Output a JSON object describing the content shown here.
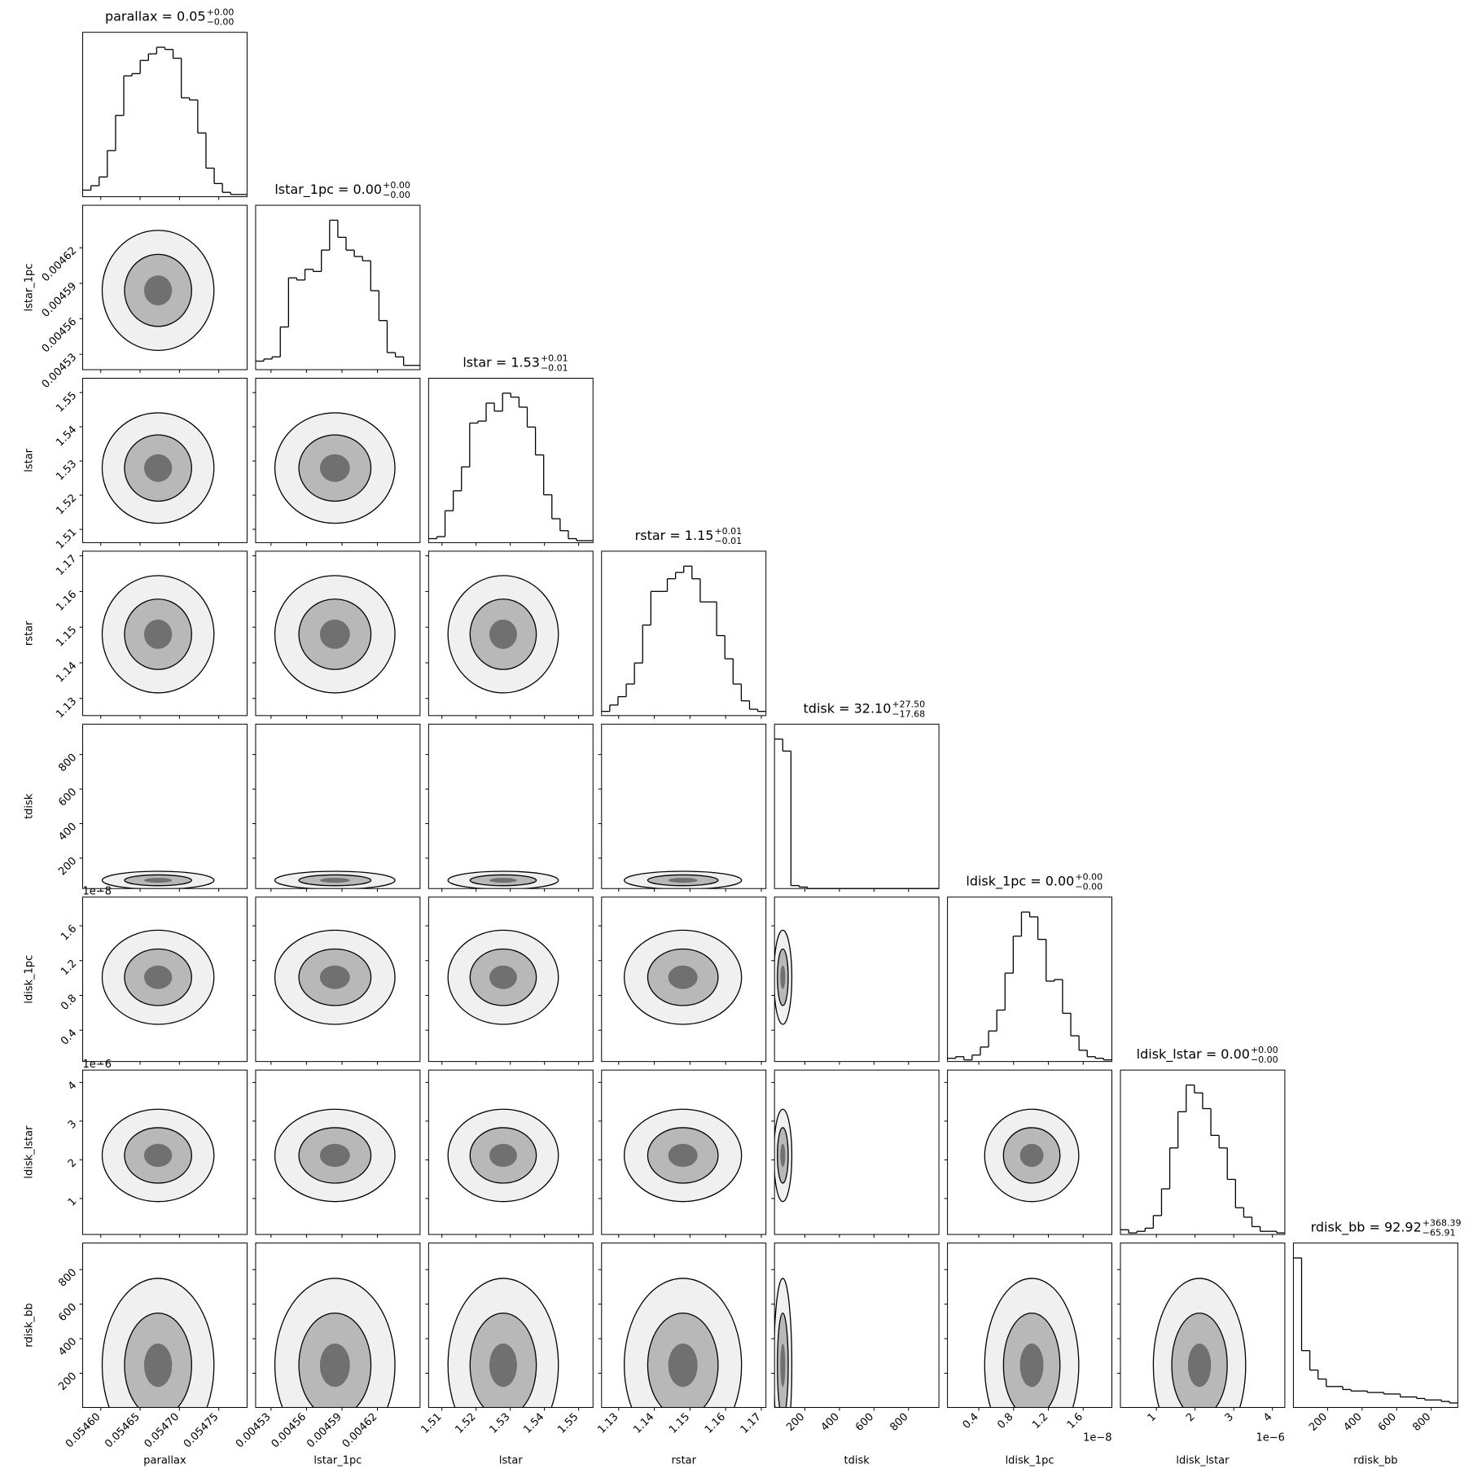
{
  "chart_data": {
    "type": "corner",
    "parameters": [
      {
        "name": "parallax",
        "title": "parallax = 0.05",
        "upper": "+0.00",
        "lower": "−0.00",
        "lim": [
          0.054577,
          0.054786
        ],
        "ticks": [
          {
            "value": 0.0546,
            "label": "0.05460"
          },
          0.05465,
          {
            "value": 0.0547,
            "label": "0.05470"
          },
          0.05475
        ],
        "hist": [
          3,
          5,
          9,
          21,
          37,
          55,
          56,
          62,
          65,
          68,
          67,
          63,
          45,
          44,
          29,
          13,
          6,
          2,
          1,
          1
        ]
      },
      {
        "name": "lstar_1pc",
        "title": "lstar_1pc = 0.00",
        "upper": "+0.00",
        "lower": "−0.00",
        "lim": [
          0.004517,
          0.004656
        ],
        "ticks": [
          0.00453,
          0.00456,
          0.00459,
          0.00462
        ],
        "hist": [
          4,
          5,
          6,
          20,
          43,
          42,
          47,
          46,
          56,
          70,
          62,
          56,
          53,
          51,
          37,
          23,
          8,
          6,
          2,
          2
        ]
      },
      {
        "name": "lstar",
        "title": "lstar = 1.53",
        "upper": "+0.01",
        "lower": "−0.01",
        "lim": [
          1.5061,
          1.5542
        ],
        "ticks": [
          1.51,
          1.52,
          1.53,
          1.54,
          1.55
        ],
        "hist": [
          2,
          3,
          16,
          26,
          38,
          60,
          61,
          70,
          66,
          75,
          73,
          68,
          58,
          44,
          24,
          12,
          6,
          2,
          1,
          1
        ]
      },
      {
        "name": "rstar",
        "title": "rstar = 1.15",
        "upper": "+0.01",
        "lower": "−0.01",
        "lim": [
          1.1252,
          1.1713
        ],
        "ticks": [
          1.13,
          1.14,
          1.15,
          1.16,
          1.17
        ],
        "hist": [
          2,
          5,
          9,
          15,
          25,
          43,
          59,
          59,
          65,
          68,
          71,
          65,
          54,
          54,
          38,
          27,
          15,
          7,
          3,
          2
        ]
      },
      {
        "name": "tdisk",
        "title": "tdisk = 32.10",
        "upper": "+27.50",
        "lower": "−17.68",
        "lim": [
          24,
          976
        ],
        "ticks": [
          200,
          400,
          600,
          800
        ],
        "hist": [
          100,
          92,
          2,
          1,
          0,
          0,
          0,
          0,
          0,
          0,
          0,
          0,
          0,
          0,
          0,
          0,
          0,
          0,
          0,
          0
        ]
      },
      {
        "name": "ldisk_1pc",
        "title": "ldisk_1pc = 0.00",
        "upper": "+0.00",
        "lower": "−0.00",
        "lim": [
          0.04,
          1.93
        ],
        "offset": "1e−8",
        "ticks": [
          0.4,
          0.8,
          1.2,
          1.6
        ],
        "hist": [
          2,
          3,
          1,
          4,
          9,
          19,
          32,
          55,
          78,
          93,
          90,
          76,
          50,
          51,
          30,
          16,
          7,
          3,
          2,
          1
        ]
      },
      {
        "name": "ldisk_lstar",
        "title": "ldisk_lstar = 0.00",
        "upper": "+0.00",
        "lower": "−0.00",
        "lim": [
          0.07,
          4.32
        ],
        "offset": "1e−6",
        "ticks": [
          1,
          2,
          3,
          4
        ],
        "hist": [
          3,
          1,
          2,
          4,
          12,
          29,
          55,
          78,
          95,
          90,
          80,
          63,
          55,
          35,
          17,
          11,
          5,
          2,
          2,
          1
        ]
      },
      {
        "name": "rdisk_bb",
        "title": "rdisk_bb = 92.92",
        "upper": "+368.39",
        "lower": "−65.91",
        "lim": [
          2,
          954
        ],
        "ticks": [
          200,
          400,
          600,
          800
        ],
        "hist": [
          100,
          38,
          25,
          19,
          14,
          14,
          12,
          11,
          11,
          10,
          10,
          9,
          9,
          7,
          7,
          6,
          5,
          5,
          4,
          3
        ]
      }
    ]
  }
}
